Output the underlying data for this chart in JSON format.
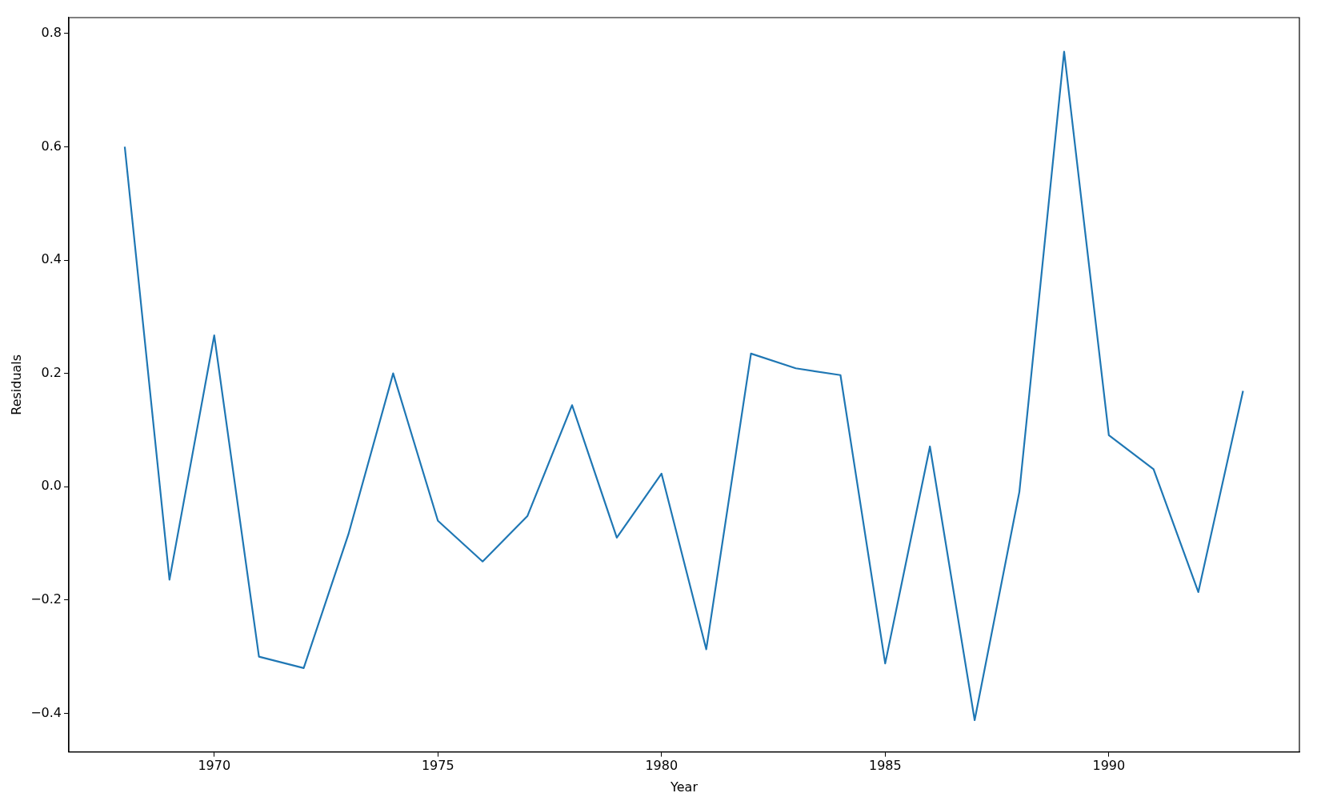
{
  "chart_data": {
    "type": "line",
    "xlabel": "Year",
    "ylabel": "Residuals",
    "x": [
      1968,
      1969,
      1970,
      1971,
      1972,
      1973,
      1974,
      1975,
      1976,
      1977,
      1978,
      1979,
      1980,
      1981,
      1982,
      1983,
      1984,
      1985,
      1986,
      1987,
      1988,
      1989,
      1990,
      1991,
      1992,
      1993
    ],
    "series": [
      {
        "color": "#1f77b4",
        "values": [
          0.6,
          -0.164,
          0.267,
          -0.3,
          -0.32,
          -0.084,
          0.2,
          -0.06,
          -0.132,
          -0.052,
          0.144,
          -0.09,
          0.023,
          -0.287,
          0.235,
          0.209,
          0.197,
          -0.312,
          0.071,
          -0.412,
          -0.009,
          0.768,
          0.091,
          0.031,
          -0.186,
          0.169
        ]
      }
    ],
    "xlim": [
      1966.75,
      1994.26
    ],
    "xticks": [
      1970,
      1975,
      1980,
      1985,
      1990
    ],
    "ylim": [
      -0.468,
      0.828
    ],
    "yticks": [
      {
        "value": -0.4,
        "label": "−0.4"
      },
      {
        "value": -0.2,
        "label": "−0.2"
      },
      {
        "value": 0,
        "label": "0.0"
      },
      {
        "value": 0.2,
        "label": "0.2"
      },
      {
        "value": 0.4,
        "label": "0.4"
      },
      {
        "value": 0.6,
        "label": "0.6"
      },
      {
        "value": 0.8,
        "label": "0.8"
      }
    ],
    "grid": false,
    "legend": false,
    "marker": "none",
    "line_style": "solid"
  }
}
